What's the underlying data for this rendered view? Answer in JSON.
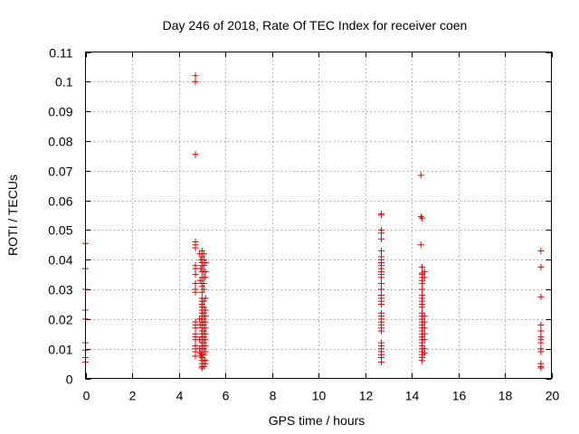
{
  "chart_data": {
    "type": "scatter",
    "title": "Day 246 of 2018, Rate Of TEC Index for receiver coen",
    "xlabel": "GPS time / hours",
    "ylabel": "ROTI / TECUs",
    "xlim": [
      0,
      20
    ],
    "ylim": [
      0,
      0.11
    ],
    "xticks": [
      0,
      2,
      4,
      6,
      8,
      10,
      12,
      14,
      16,
      18,
      20
    ],
    "yticks": [
      0,
      0.01,
      0.02,
      0.03,
      0.04,
      0.05,
      0.06,
      0.07,
      0.08,
      0.09,
      0.1,
      0.11
    ],
    "grid": true,
    "marker": "+",
    "color": "#e00000",
    "series": [
      {
        "name": "ROTI",
        "points": [
          [
            0.0,
            0.0455
          ],
          [
            0.0,
            0.037
          ],
          [
            0.0,
            0.03
          ],
          [
            0.0,
            0.023
          ],
          [
            0.0,
            0.02
          ],
          [
            0.0,
            0.012
          ],
          [
            0.0,
            0.0095
          ],
          [
            0.0,
            0.007
          ],
          [
            0.0,
            0.0055
          ],
          [
            4.72,
            0.102
          ],
          [
            4.72,
            0.1
          ],
          [
            4.72,
            0.0755
          ],
          [
            4.72,
            0.046
          ],
          [
            4.72,
            0.045
          ],
          [
            4.72,
            0.044
          ],
          [
            4.72,
            0.038
          ],
          [
            4.72,
            0.037
          ],
          [
            4.72,
            0.035
          ],
          [
            4.72,
            0.032
          ],
          [
            4.72,
            0.03
          ],
          [
            4.72,
            0.029
          ],
          [
            4.72,
            0.019
          ],
          [
            4.72,
            0.018
          ],
          [
            4.72,
            0.017
          ],
          [
            4.72,
            0.015
          ],
          [
            4.72,
            0.014
          ],
          [
            4.72,
            0.013
          ],
          [
            4.72,
            0.011
          ],
          [
            4.72,
            0.01
          ],
          [
            4.72,
            0.009
          ],
          [
            4.72,
            0.0075
          ],
          [
            4.9,
            0.042
          ],
          [
            4.95,
            0.04
          ],
          [
            4.95,
            0.037
          ],
          [
            4.92,
            0.033
          ],
          [
            4.9,
            0.02
          ],
          [
            4.92,
            0.018
          ],
          [
            4.9,
            0.013
          ],
          [
            4.9,
            0.01
          ],
          [
            4.92,
            0.0085
          ],
          [
            4.95,
            0.0075
          ],
          [
            5.0,
            0.043
          ],
          [
            5.0,
            0.041
          ],
          [
            5.0,
            0.039
          ],
          [
            5.0,
            0.038
          ],
          [
            5.0,
            0.036
          ],
          [
            5.0,
            0.034
          ],
          [
            5.0,
            0.032
          ],
          [
            5.0,
            0.031
          ],
          [
            5.0,
            0.029
          ],
          [
            5.0,
            0.027
          ],
          [
            5.0,
            0.026
          ],
          [
            5.0,
            0.025
          ],
          [
            5.0,
            0.024
          ],
          [
            5.0,
            0.023
          ],
          [
            5.0,
            0.022
          ],
          [
            5.0,
            0.021
          ],
          [
            5.0,
            0.02
          ],
          [
            5.0,
            0.019
          ],
          [
            5.0,
            0.018
          ],
          [
            5.0,
            0.017
          ],
          [
            5.0,
            0.016
          ],
          [
            5.0,
            0.015
          ],
          [
            5.0,
            0.014
          ],
          [
            5.0,
            0.013
          ],
          [
            5.0,
            0.012
          ],
          [
            5.0,
            0.011
          ],
          [
            5.0,
            0.01
          ],
          [
            5.0,
            0.009
          ],
          [
            5.0,
            0.008
          ],
          [
            5.0,
            0.007
          ],
          [
            5.0,
            0.006
          ],
          [
            5.0,
            0.005
          ],
          [
            5.0,
            0.004
          ],
          [
            5.0,
            0.0035
          ],
          [
            5.08,
            0.042
          ],
          [
            5.08,
            0.04
          ],
          [
            5.08,
            0.038
          ],
          [
            5.08,
            0.036
          ],
          [
            5.08,
            0.034
          ],
          [
            5.08,
            0.032
          ],
          [
            5.08,
            0.03
          ],
          [
            5.08,
            0.026
          ],
          [
            5.08,
            0.024
          ],
          [
            5.08,
            0.022
          ],
          [
            5.08,
            0.02
          ],
          [
            5.08,
            0.018
          ],
          [
            5.08,
            0.016
          ],
          [
            5.08,
            0.014
          ],
          [
            5.08,
            0.012
          ],
          [
            5.08,
            0.01
          ],
          [
            5.08,
            0.008
          ],
          [
            5.08,
            0.006
          ],
          [
            5.08,
            0.004
          ],
          [
            5.15,
            0.039
          ],
          [
            5.15,
            0.036
          ],
          [
            5.15,
            0.034
          ],
          [
            5.15,
            0.027
          ],
          [
            5.15,
            0.023
          ],
          [
            5.15,
            0.021
          ],
          [
            5.15,
            0.019
          ],
          [
            5.15,
            0.017
          ],
          [
            5.15,
            0.015
          ],
          [
            5.15,
            0.013
          ],
          [
            5.15,
            0.011
          ],
          [
            5.15,
            0.009
          ],
          [
            5.15,
            0.006
          ],
          [
            5.15,
            0.005
          ],
          [
            12.7,
            0.0555
          ],
          [
            12.7,
            0.055
          ],
          [
            12.7,
            0.05
          ],
          [
            12.7,
            0.049
          ],
          [
            12.7,
            0.047
          ],
          [
            12.7,
            0.043
          ],
          [
            12.7,
            0.041
          ],
          [
            12.7,
            0.04
          ],
          [
            12.7,
            0.039
          ],
          [
            12.7,
            0.038
          ],
          [
            12.7,
            0.037
          ],
          [
            12.7,
            0.036
          ],
          [
            12.7,
            0.035
          ],
          [
            12.7,
            0.034
          ],
          [
            12.7,
            0.032
          ],
          [
            12.7,
            0.03
          ],
          [
            12.7,
            0.028
          ],
          [
            12.7,
            0.027
          ],
          [
            12.7,
            0.026
          ],
          [
            12.7,
            0.025
          ],
          [
            12.7,
            0.022
          ],
          [
            12.7,
            0.021
          ],
          [
            12.7,
            0.02
          ],
          [
            12.7,
            0.019
          ],
          [
            12.7,
            0.018
          ],
          [
            12.7,
            0.017
          ],
          [
            12.7,
            0.016
          ],
          [
            12.7,
            0.012
          ],
          [
            12.7,
            0.011
          ],
          [
            12.7,
            0.01
          ],
          [
            12.7,
            0.009
          ],
          [
            12.7,
            0.008
          ],
          [
            12.7,
            0.007
          ],
          [
            12.7,
            0.0055
          ],
          [
            14.4,
            0.0685
          ],
          [
            14.4,
            0.0545
          ],
          [
            14.45,
            0.054
          ],
          [
            14.4,
            0.045
          ],
          [
            14.45,
            0.0375
          ],
          [
            14.45,
            0.0355
          ],
          [
            14.45,
            0.035
          ],
          [
            14.45,
            0.034
          ],
          [
            14.45,
            0.033
          ],
          [
            14.45,
            0.032
          ],
          [
            14.45,
            0.03
          ],
          [
            14.45,
            0.028
          ],
          [
            14.45,
            0.027
          ],
          [
            14.45,
            0.026
          ],
          [
            14.45,
            0.025
          ],
          [
            14.45,
            0.024
          ],
          [
            14.45,
            0.022
          ],
          [
            14.45,
            0.021
          ],
          [
            14.45,
            0.02
          ],
          [
            14.45,
            0.019
          ],
          [
            14.45,
            0.018
          ],
          [
            14.45,
            0.017
          ],
          [
            14.45,
            0.016
          ],
          [
            14.45,
            0.015
          ],
          [
            14.45,
            0.014
          ],
          [
            14.45,
            0.013
          ],
          [
            14.45,
            0.012
          ],
          [
            14.45,
            0.011
          ],
          [
            14.45,
            0.01
          ],
          [
            14.45,
            0.009
          ],
          [
            14.45,
            0.008
          ],
          [
            14.45,
            0.007
          ],
          [
            14.45,
            0.006
          ],
          [
            14.55,
            0.036
          ],
          [
            14.55,
            0.034
          ],
          [
            14.55,
            0.021
          ],
          [
            14.55,
            0.019
          ],
          [
            14.55,
            0.017
          ],
          [
            14.55,
            0.015
          ],
          [
            14.55,
            0.013
          ],
          [
            14.55,
            0.01
          ],
          [
            14.55,
            0.0085
          ],
          [
            19.55,
            0.043
          ],
          [
            19.55,
            0.0375
          ],
          [
            19.55,
            0.0275
          ],
          [
            19.55,
            0.018
          ],
          [
            19.55,
            0.016
          ],
          [
            19.55,
            0.014
          ],
          [
            19.55,
            0.013
          ],
          [
            19.55,
            0.012
          ],
          [
            19.55,
            0.01
          ],
          [
            19.55,
            0.009
          ],
          [
            19.55,
            0.005
          ],
          [
            19.55,
            0.004
          ],
          [
            19.55,
            0.0035
          ]
        ]
      }
    ]
  }
}
